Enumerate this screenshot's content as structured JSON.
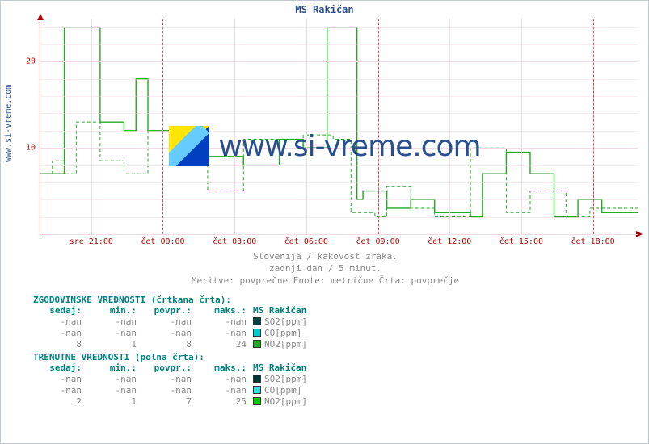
{
  "title": "MS Rakičan",
  "side_label": "www.si-vreme.com",
  "watermark_text": "www.si-vreme.com",
  "subtitles": [
    "Slovenija / kakovost zraka.",
    "zadnji dan / 5 minut.",
    "Meritve: povprečne  Enote: metrične  Črta: povprečje"
  ],
  "chart": {
    "type": "line",
    "background_color": "#ffffff",
    "grid_color": "#f2d9e6",
    "axis_color": "#b00000",
    "ylim": [
      0,
      25
    ],
    "y_major_ticks": [
      0,
      10,
      20
    ],
    "y_minor_step": 2,
    "x_labels": [
      "sre 21:00",
      "čet 00:00",
      "čet 03:00",
      "čet 06:00",
      "čet 09:00",
      "čet 12:00",
      "čet 15:00",
      "čet 18:00"
    ],
    "x_positions_pct": [
      8.5,
      20.5,
      32.5,
      44.5,
      56.5,
      68.5,
      80.5,
      92.5
    ],
    "x_dash_positions_pct": [
      20.5,
      56.5,
      92.5
    ],
    "series": [
      {
        "name": "NO2_hist",
        "style": "dashed",
        "color": "#22aa22",
        "line_width": 1,
        "points": [
          [
            0,
            7
          ],
          [
            2,
            7
          ],
          [
            2,
            8.5
          ],
          [
            4,
            8.5
          ],
          [
            4,
            7
          ],
          [
            6,
            7
          ],
          [
            6,
            13
          ],
          [
            10,
            13
          ],
          [
            10,
            8.5
          ],
          [
            14,
            8.5
          ],
          [
            14,
            7
          ],
          [
            18,
            7
          ],
          [
            18,
            12
          ],
          [
            22,
            12
          ],
          [
            22,
            10
          ],
          [
            28,
            10
          ],
          [
            28,
            5
          ],
          [
            34,
            5
          ],
          [
            34,
            11
          ],
          [
            40,
            11
          ],
          [
            40,
            11
          ],
          [
            44,
            11
          ],
          [
            44,
            11.5
          ],
          [
            49,
            11.5
          ],
          [
            49,
            11
          ],
          [
            52,
            11
          ],
          [
            52,
            2.5
          ],
          [
            56,
            2.5
          ],
          [
            56,
            2
          ],
          [
            58,
            2
          ],
          [
            58,
            5.5
          ],
          [
            62,
            5.5
          ],
          [
            62,
            3
          ],
          [
            66,
            3
          ],
          [
            66,
            2
          ],
          [
            72,
            2
          ],
          [
            72,
            10
          ],
          [
            78,
            10
          ],
          [
            78,
            2.5
          ],
          [
            82,
            2.5
          ],
          [
            82,
            5
          ],
          [
            88,
            5
          ],
          [
            88,
            2
          ],
          [
            92,
            2
          ],
          [
            92,
            3
          ],
          [
            100,
            3
          ]
        ]
      },
      {
        "name": "NO2_current",
        "style": "solid",
        "color": "#22aa22",
        "line_width": 1.4,
        "points": [
          [
            0,
            7
          ],
          [
            4,
            7
          ],
          [
            4,
            24
          ],
          [
            10,
            24
          ],
          [
            10,
            13
          ],
          [
            14,
            13
          ],
          [
            14,
            12
          ],
          [
            16,
            12
          ],
          [
            16,
            18
          ],
          [
            18,
            18
          ],
          [
            18,
            12
          ],
          [
            22,
            12
          ],
          [
            22,
            11
          ],
          [
            26,
            11
          ],
          [
            26,
            9
          ],
          [
            34,
            9
          ],
          [
            34,
            8
          ],
          [
            40,
            8
          ],
          [
            40,
            11
          ],
          [
            44,
            11
          ],
          [
            44,
            10
          ],
          [
            48,
            10
          ],
          [
            48,
            24
          ],
          [
            53,
            24
          ],
          [
            53,
            4
          ],
          [
            54,
            4
          ],
          [
            54,
            5
          ],
          [
            58,
            5
          ],
          [
            58,
            3
          ],
          [
            62,
            3
          ],
          [
            62,
            4
          ],
          [
            66,
            4
          ],
          [
            66,
            2.5
          ],
          [
            72,
            2.5
          ],
          [
            72,
            2
          ],
          [
            74,
            2
          ],
          [
            74,
            7
          ],
          [
            78,
            7
          ],
          [
            78,
            9.5
          ],
          [
            82,
            9.5
          ],
          [
            82,
            7
          ],
          [
            86,
            7
          ],
          [
            86,
            2
          ],
          [
            90,
            2
          ],
          [
            90,
            4
          ],
          [
            94,
            4
          ],
          [
            94,
            2.5
          ],
          [
            100,
            2.5
          ]
        ]
      }
    ]
  },
  "tables": {
    "hist_header": "ZGODOVINSKE VREDNOSTI (črtkana črta):",
    "curr_header": "TRENUTNE VREDNOSTI (polna črta):",
    "columns": [
      "sedaj:",
      "min.:",
      "povpr.:",
      "maks.:"
    ],
    "station_label": "MS Rakičan",
    "hist_rows": [
      {
        "vals": [
          "-nan",
          "-nan",
          "-nan",
          "-nan"
        ],
        "swatch": "#004040",
        "label": "SO2[ppm]"
      },
      {
        "vals": [
          "-nan",
          "-nan",
          "-nan",
          "-nan"
        ],
        "swatch": "#00cccc",
        "label": "CO[ppm]"
      },
      {
        "vals": [
          "8",
          "1",
          "8",
          "24"
        ],
        "swatch": "#22aa22",
        "label": "NO2[ppm]"
      }
    ],
    "curr_rows": [
      {
        "vals": [
          "-nan",
          "-nan",
          "-nan",
          "-nan"
        ],
        "swatch": "#003333",
        "label": "SO2[ppm]"
      },
      {
        "vals": [
          "-nan",
          "-nan",
          "-nan",
          "-nan"
        ],
        "swatch": "#33dddd",
        "label": "CO[ppm]"
      },
      {
        "vals": [
          "2",
          "1",
          "7",
          "25"
        ],
        "swatch": "#00cc00",
        "label": "NO2[ppm]"
      }
    ]
  }
}
